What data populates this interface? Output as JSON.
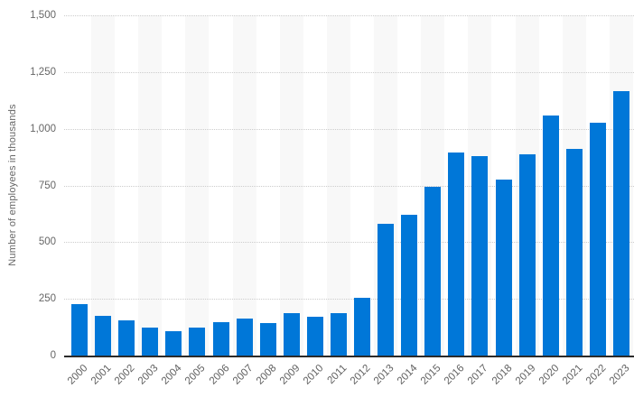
{
  "chart_data": {
    "type": "bar",
    "title": "",
    "xlabel": "",
    "ylabel": "Number of employees in thousands",
    "categories": [
      "2000",
      "2001",
      "2002",
      "2003",
      "2004",
      "2005",
      "2006",
      "2007",
      "2008",
      "2009",
      "2010",
      "2011",
      "2012",
      "2013",
      "2014",
      "2015",
      "2016",
      "2017",
      "2018",
      "2019",
      "2020",
      "2021",
      "2022",
      "2023"
    ],
    "values": [
      227,
      175,
      156,
      125,
      109,
      122,
      147,
      165,
      143,
      188,
      172,
      188,
      254,
      579,
      619,
      743,
      896,
      878,
      777,
      889,
      1060,
      913,
      1025,
      1167
    ],
    "ylim": [
      0,
      1500
    ],
    "yticks": [
      0,
      250,
      500,
      750,
      1000,
      1250,
      1500
    ],
    "ytick_labels": [
      "0",
      "250",
      "500",
      "750",
      "1,000",
      "1,250",
      "1,500"
    ],
    "grid": "horizontal-dotted",
    "legend": "none",
    "background_bands": "alternating-columns"
  },
  "colors": {
    "bar": "#0077d8",
    "column_band": "#f8f8f8",
    "gridline": "#cccccc",
    "axis_line": "#2b2b2b",
    "tick_text": "#666666",
    "background": "#ffffff"
  }
}
